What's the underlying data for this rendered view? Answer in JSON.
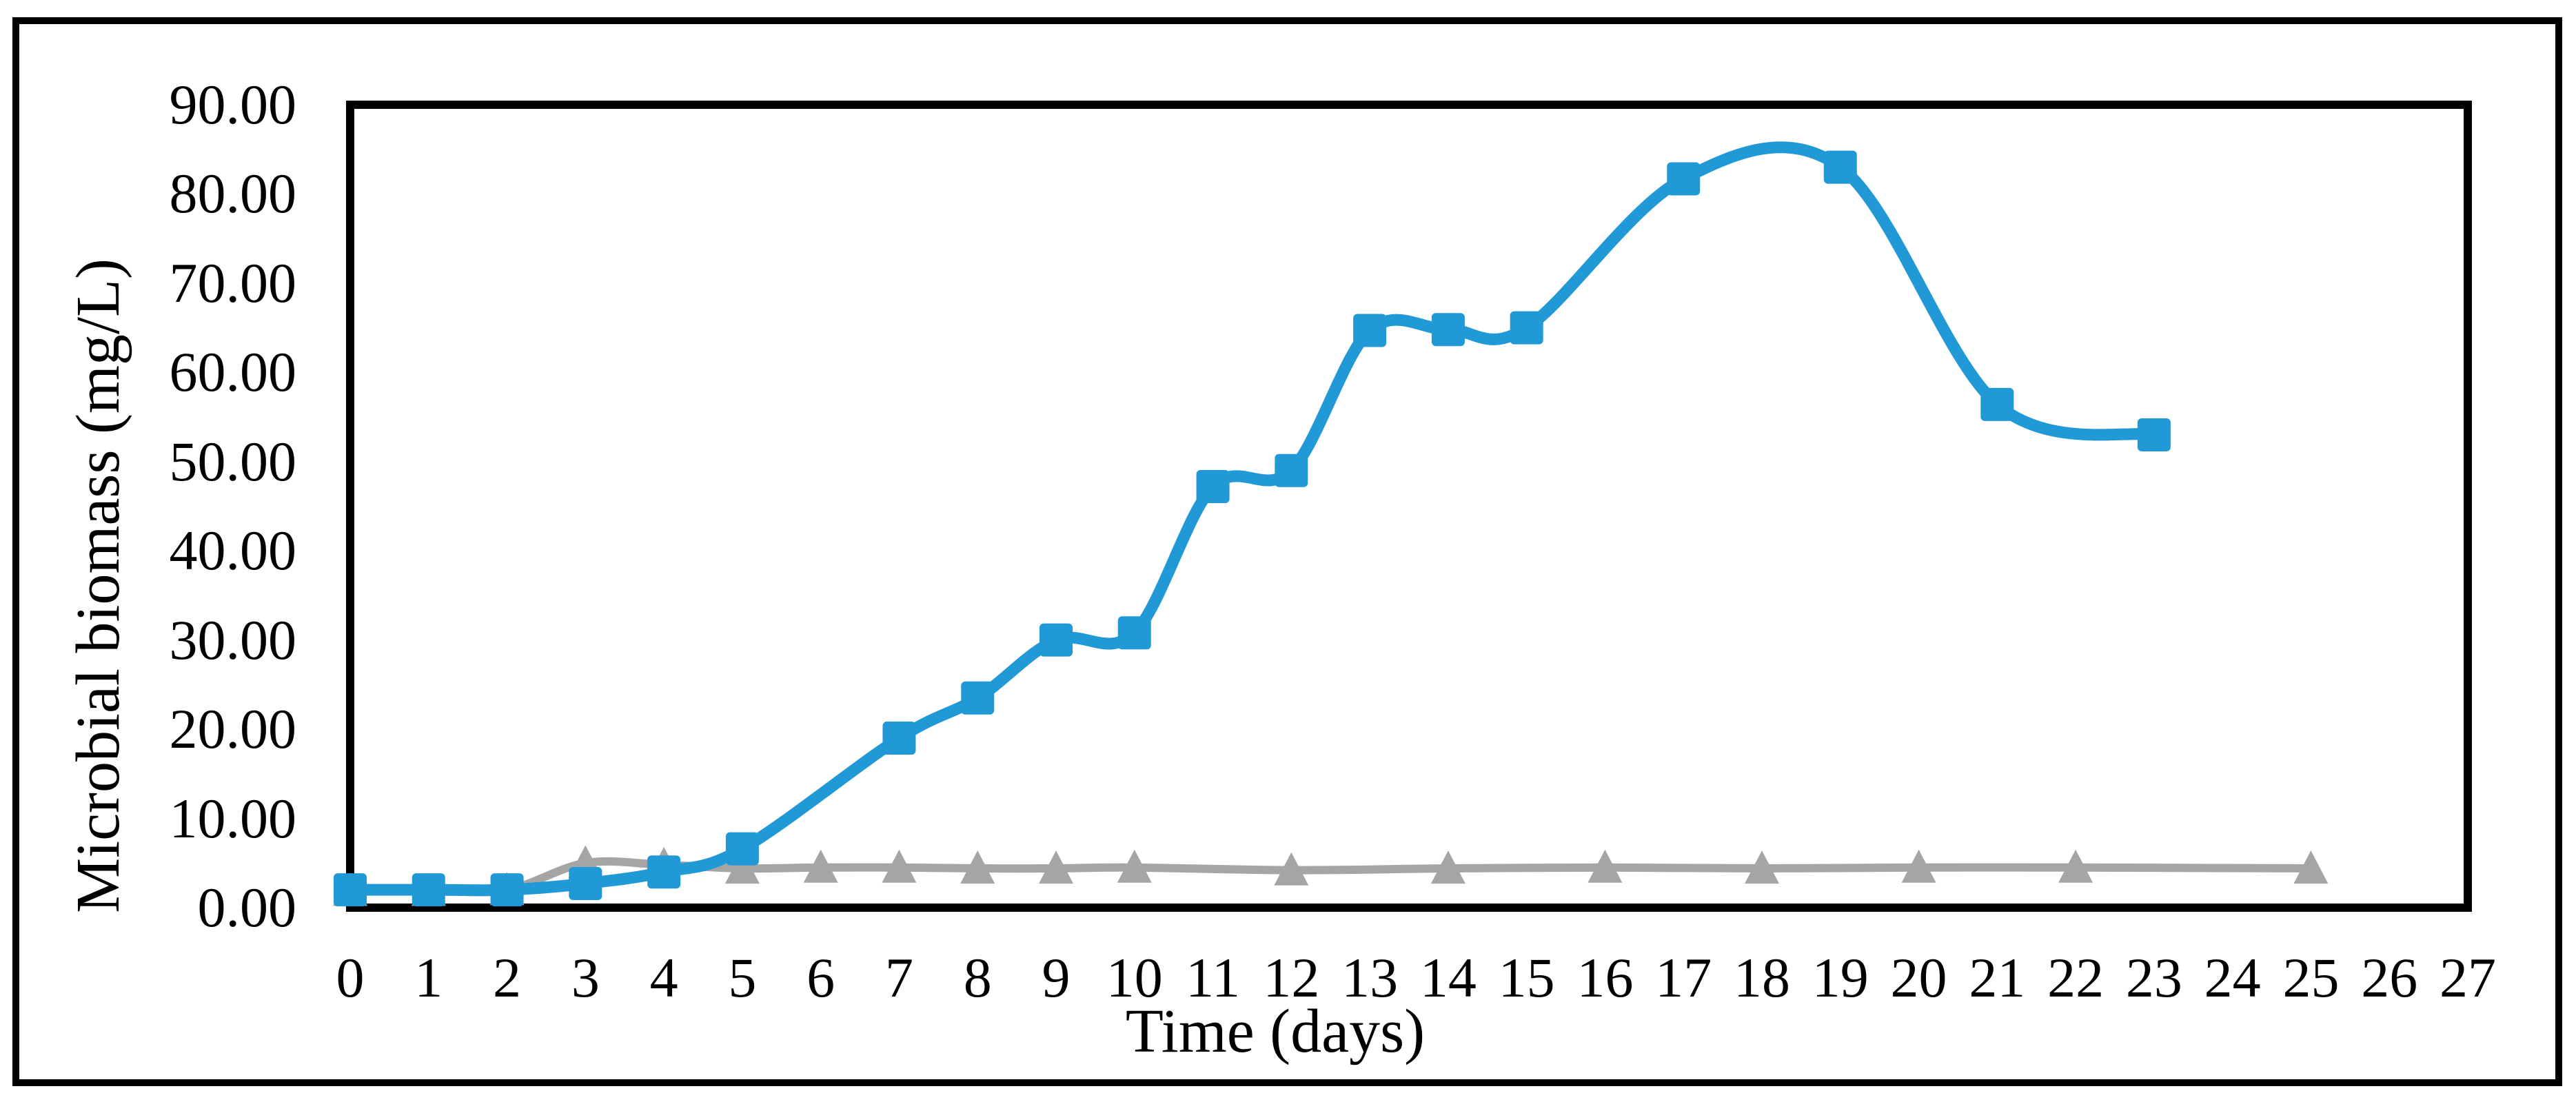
{
  "figure": {
    "background": "#ffffff",
    "outer_border_color": "#000000",
    "plot_border_color": "#000000"
  },
  "chart_data": {
    "type": "line",
    "title": "",
    "xlabel": "Time (days)",
    "ylabel": "Microbial biomass (mg/L)",
    "xlim": [
      0,
      27
    ],
    "ylim": [
      0,
      90
    ],
    "x_tick_interval": 1,
    "y_tick_interval": 10,
    "grid": false,
    "legend": "none",
    "x_tick_labels": [
      "0",
      "1",
      "2",
      "3",
      "4",
      "5",
      "6",
      "7",
      "8",
      "9",
      "10",
      "11",
      "12",
      "13",
      "14",
      "15",
      "16",
      "17",
      "18",
      "19",
      "20",
      "21",
      "22",
      "23",
      "24",
      "25",
      "26",
      "27"
    ],
    "y_tick_labels": [
      "0.00",
      "10.00",
      "20.00",
      "30.00",
      "40.00",
      "50.00",
      "60.00",
      "70.00",
      "80.00",
      "90.00"
    ],
    "series": [
      {
        "id": "gray-triangles",
        "marker": "triangle",
        "color": "#a5a5a5",
        "line_width": 12,
        "marker_size": 50,
        "smooth": true,
        "x": [
          0,
          1,
          2,
          3,
          4,
          5,
          6,
          7,
          8,
          9,
          10,
          12,
          14,
          16,
          18,
          20,
          22,
          25
        ],
        "y": [
          1.9,
          1.9,
          2.0,
          5.0,
          4.8,
          4.4,
          4.5,
          4.5,
          4.4,
          4.4,
          4.5,
          4.2,
          4.4,
          4.5,
          4.4,
          4.5,
          4.5,
          4.4
        ]
      },
      {
        "id": "blue-squares",
        "marker": "square",
        "color": "#2199d6",
        "line_width": 17,
        "marker_size": 48,
        "smooth": true,
        "x": [
          0,
          1,
          2,
          3,
          4,
          5,
          7,
          8,
          9,
          10,
          11,
          12,
          13,
          14,
          15,
          17,
          19,
          21,
          23
        ],
        "y": [
          2.0,
          2.0,
          2.0,
          2.7,
          4.0,
          6.6,
          19.0,
          23.5,
          30.0,
          30.8,
          47.2,
          49.0,
          64.7,
          64.8,
          65.0,
          81.7,
          83.0,
          56.4,
          53.0
        ]
      }
    ]
  }
}
